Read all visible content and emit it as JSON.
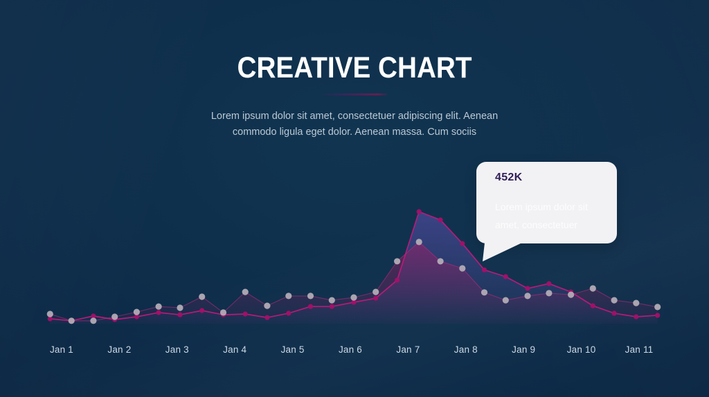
{
  "slide": {
    "title": "CREATIVE CHART",
    "subtitle_line1": "Lorem ipsum dolor sit amet, consectetuer adipiscing elit. Aenean",
    "subtitle_line2": "commodo ligula eget dolor. Aenean massa. Cum sociis",
    "colors": {
      "background_center": "#113551",
      "background_edge": "#092036",
      "title": "#ffffff",
      "subtitle": "#bcc9d4",
      "axis_label": "#cdd9e4",
      "divider_gradient": [
        "#2b2a58",
        "#63204f"
      ]
    }
  },
  "tooltip": {
    "value": "452K",
    "line1": "Lorem ipsum dolor sit",
    "line2": "amet, consectetuer",
    "background": "#f2f1f4",
    "value_color": "#32205a",
    "text_color": "#fdfdfd"
  },
  "chart_data": {
    "type": "area",
    "title": "",
    "xlabel": "",
    "ylabel": "",
    "unit": "K",
    "ylim": [
      0,
      500
    ],
    "grid": false,
    "legend": "none",
    "x_axis_labels": [
      "Jan 1",
      "Jan 2",
      "Jan 3",
      "Jan 4",
      "Jan 5",
      "Jan 6",
      "Jan 7",
      "Jan 8",
      "Jan 9",
      "Jan 10",
      "Jan 11"
    ],
    "x_days": [
      0.8,
      1.17,
      1.55,
      1.92,
      2.3,
      2.68,
      3.05,
      3.43,
      3.8,
      4.18,
      4.56,
      4.93,
      5.31,
      5.68,
      6.06,
      6.44,
      6.81,
      7.19,
      7.56,
      7.94,
      8.32,
      8.69,
      9.07,
      9.44,
      9.82,
      10.2,
      10.57,
      10.95,
      11.32
    ],
    "series": [
      {
        "name": "highlight-series",
        "marker_color": "#a31069",
        "line_color": "#c0187a",
        "fill_color": "#6a54be",
        "marker_radius": 3.6,
        "values": [
          25,
          17,
          36,
          22,
          33,
          50,
          41,
          58,
          41,
          44,
          30,
          47,
          74,
          74,
          91,
          107,
          179,
          452,
          419,
          325,
          220,
          193,
          146,
          165,
          132,
          77,
          47,
          33,
          39
        ]
      },
      {
        "name": "baseline-series",
        "marker_color": "#b5afb9",
        "line_color": "#c12a7d",
        "fill_color": "#a81a63",
        "marker_radius": 4.6,
        "values": [
          44,
          17,
          17,
          33,
          52,
          74,
          69,
          113,
          50,
          132,
          77,
          116,
          116,
          99,
          110,
          132,
          254,
          331,
          254,
          226,
          130,
          99,
          116,
          127,
          121,
          146,
          99,
          88,
          72
        ]
      }
    ],
    "annotation": {
      "series": "highlight-series",
      "day": 7.19,
      "value_label": "452K"
    }
  }
}
